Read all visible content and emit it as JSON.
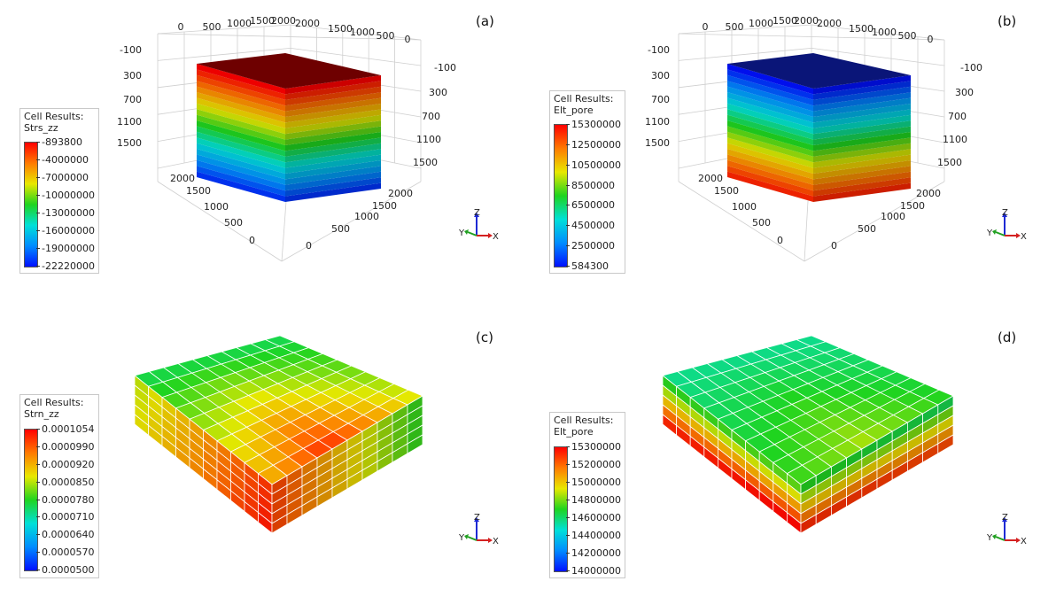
{
  "panels": [
    {
      "letter": "(a)",
      "kind": "box",
      "palette": "stress",
      "legend": {
        "title_line1": "Cell Results:",
        "title_line2": "Strs_zz",
        "labels": [
          "-893800",
          "-4000000",
          "-7000000",
          "-10000000",
          "-13000000",
          "-16000000",
          "-19000000",
          "-22220000"
        ]
      },
      "ticks": {
        "top_left": [
          "0",
          "500",
          "1000",
          "1500",
          "2000"
        ],
        "top_right": [
          "2000",
          "1500",
          "1000",
          "500",
          "0"
        ],
        "left_depth": [
          "-100",
          "300",
          "700",
          "1100",
          "1500"
        ],
        "right_depth": [
          "-100",
          "300",
          "700",
          "1100",
          "1500"
        ],
        "bottom_left": [
          "2000",
          "1500",
          "1000",
          "500",
          "0"
        ],
        "bottom_right": [
          "2000",
          "1500",
          "1000",
          "500",
          "0"
        ]
      },
      "axes": {
        "x": "X",
        "y": "Y",
        "z": "Z"
      }
    },
    {
      "letter": "(b)",
      "kind": "box",
      "palette": "pressure",
      "legend": {
        "title_line1": "Cell Results:",
        "title_line2": "Elt_pore",
        "labels": [
          "15300000",
          "12500000",
          "10500000",
          "8500000",
          "6500000",
          "4500000",
          "2500000",
          "584300"
        ]
      },
      "ticks": {
        "top_left": [
          "0",
          "500",
          "1000",
          "1500",
          "2000"
        ],
        "top_right": [
          "2000",
          "1500",
          "1000",
          "500",
          "0"
        ],
        "left_depth": [
          "-100",
          "300",
          "700",
          "1100",
          "1500"
        ],
        "right_depth": [
          "-100",
          "300",
          "700",
          "1100",
          "1500"
        ],
        "bottom_left": [
          "2000",
          "1500",
          "1000",
          "500",
          "0"
        ],
        "bottom_right": [
          "2000",
          "1500",
          "1000",
          "500",
          "0"
        ]
      },
      "axes": {
        "x": "X",
        "y": "Y",
        "z": "Z"
      }
    },
    {
      "letter": "(c)",
      "kind": "grid",
      "palette": "strain",
      "legend": {
        "title_line1": "Cell Results:",
        "title_line2": "Strn_zz",
        "labels": [
          "0.0001054",
          "0.0000990",
          "0.0000920",
          "0.0000850",
          "0.0000780",
          "0.0000710",
          "0.0000640",
          "0.0000570",
          "0.0000500"
        ]
      },
      "axes": {
        "x": "X",
        "y": "Y",
        "z": "Z"
      }
    },
    {
      "letter": "(d)",
      "kind": "grid",
      "palette": "pore2",
      "legend": {
        "title_line1": "Cell Results:",
        "title_line2": "Elt_pore",
        "labels": [
          "15300000",
          "15200000",
          "15000000",
          "14800000",
          "14600000",
          "14400000",
          "14200000",
          "14000000"
        ]
      },
      "axes": {
        "x": "X",
        "y": "Y",
        "z": "Z"
      }
    }
  ],
  "colors": {
    "ramp": [
      "#ff0000",
      "#ff7a00",
      "#e8e800",
      "#1fd41f",
      "#00e0d8",
      "#008cff",
      "#0010ff"
    ],
    "top_red": "#6e0000",
    "top_blue": "#0a1578",
    "grid_line": "#ffffff",
    "axis_x": "#d42020",
    "axis_y": "#20a020",
    "axis_z": "#1e2ad4"
  }
}
